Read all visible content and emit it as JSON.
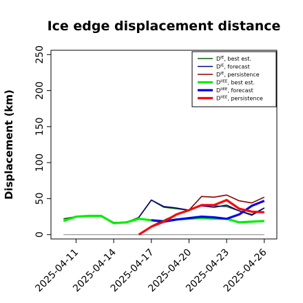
{
  "chart_data": {
    "type": "line",
    "title": "Ice edge displacement distance",
    "xlabel": "",
    "ylabel": "Displacement (km)",
    "ylim": [
      -6,
      256
    ],
    "yticks": [
      0,
      50,
      100,
      150,
      200,
      250
    ],
    "x_dates": [
      "2025-04-10",
      "2025-04-11",
      "2025-04-12",
      "2025-04-13",
      "2025-04-14",
      "2025-04-15",
      "2025-04-16",
      "2025-04-17",
      "2025-04-18",
      "2025-04-19",
      "2025-04-20",
      "2025-04-21",
      "2025-04-22",
      "2025-04-23",
      "2025-04-24",
      "2025-04-25",
      "2025-04-26"
    ],
    "xlim": [
      "2025-04-09",
      "2025-04-27"
    ],
    "xtick_labels": [
      "2025-04-11",
      "2025-04-14",
      "2025-04-17",
      "2025-04-20",
      "2025-04-23",
      "2025-04-26"
    ],
    "xtick_colors": [
      "#000000",
      "#000000",
      "#228b22",
      "#000000",
      "#000000",
      "#000000"
    ],
    "zero_line": true,
    "legend_placement": "top-right",
    "grid": false,
    "series": [
      {
        "name": "D^IE, best est.",
        "color": "#006400",
        "width": 1.6,
        "x": [
          "2025-04-10",
          "2025-04-11",
          "2025-04-12",
          "2025-04-13",
          "2025-04-14",
          "2025-04-15",
          "2025-04-16",
          "2025-04-17",
          "2025-04-18",
          "2025-04-19",
          "2025-04-20",
          "2025-04-21",
          "2025-04-22",
          "2025-04-23",
          "2025-04-24",
          "2025-04-25",
          "2025-04-26"
        ],
        "values": [
          22,
          25,
          26,
          26,
          17,
          17,
          24,
          48,
          38,
          36,
          34,
          41,
          40,
          39,
          33,
          28,
          37
        ]
      },
      {
        "name": "D^IE, forecast",
        "color": "#00008b",
        "width": 1.6,
        "x": [
          "2025-04-16",
          "2025-04-17",
          "2025-04-18",
          "2025-04-19",
          "2025-04-20",
          "2025-04-21",
          "2025-04-22",
          "2025-04-23",
          "2025-04-24",
          "2025-04-25",
          "2025-04-26"
        ],
        "values": [
          24,
          48,
          39,
          37,
          34,
          40,
          38,
          41,
          33,
          27,
          37
        ]
      },
      {
        "name": "D^IE, persistence",
        "color": "#8b0000",
        "width": 1.6,
        "x": [
          "2025-04-17",
          "2025-04-18",
          "2025-04-19",
          "2025-04-20",
          "2025-04-21",
          "2025-04-22",
          "2025-04-23",
          "2025-04-24",
          "2025-04-25",
          "2025-04-26"
        ],
        "values": [
          12,
          20,
          28,
          34,
          53,
          52,
          55,
          47,
          44,
          52
        ]
      },
      {
        "name": "D^IIEE, best est.",
        "color": "#00ee00",
        "width": 3.2,
        "x": [
          "2025-04-10",
          "2025-04-11",
          "2025-04-12",
          "2025-04-13",
          "2025-04-14",
          "2025-04-15",
          "2025-04-16",
          "2025-04-17",
          "2025-04-18",
          "2025-04-19",
          "2025-04-20",
          "2025-04-21",
          "2025-04-22",
          "2025-04-23",
          "2025-04-24",
          "2025-04-25",
          "2025-04-26"
        ],
        "values": [
          19,
          25,
          26,
          26,
          16,
          17,
          22,
          20,
          19,
          21,
          22,
          23,
          22,
          22,
          17,
          18,
          19
        ]
      },
      {
        "name": "D^IIEE, forecast",
        "color": "#0000ee",
        "width": 3.2,
        "x": [
          "2025-04-17",
          "2025-04-18",
          "2025-04-19",
          "2025-04-20",
          "2025-04-21",
          "2025-04-22",
          "2025-04-23",
          "2025-04-24",
          "2025-04-25",
          "2025-04-26"
        ],
        "values": [
          20,
          18,
          21,
          23,
          25,
          24,
          22,
          28,
          40,
          47
        ]
      },
      {
        "name": "D^IIEE, persistence",
        "color": "#ff0000",
        "width": 3.2,
        "x": [
          "2025-04-16",
          "2025-04-17",
          "2025-04-18",
          "2025-04-19",
          "2025-04-20",
          "2025-04-21",
          "2025-04-22",
          "2025-04-23",
          "2025-04-24",
          "2025-04-25",
          "2025-04-26"
        ],
        "values": [
          0,
          11,
          18,
          28,
          34,
          41,
          41,
          48,
          36,
          32,
          31
        ]
      }
    ],
    "legend": [
      {
        "base": "D",
        "sup": "IE",
        "rest": ", best est.",
        "color": "#006400",
        "width": 1.6
      },
      {
        "base": "D",
        "sup": "IE",
        "rest": ", forecast",
        "color": "#00008b",
        "width": 1.6
      },
      {
        "base": "D",
        "sup": "IE",
        "rest": ", persistence",
        "color": "#8b0000",
        "width": 1.6
      },
      {
        "base": "D",
        "sup": "IIEE",
        "rest": ", best est.",
        "color": "#00ee00",
        "width": 3.2
      },
      {
        "base": "D",
        "sup": "IIEE",
        "rest": ", forecast",
        "color": "#0000ee",
        "width": 3.2
      },
      {
        "base": "D",
        "sup": "IIEE",
        "rest": ", persistence",
        "color": "#ff0000",
        "width": 3.2
      }
    ]
  }
}
